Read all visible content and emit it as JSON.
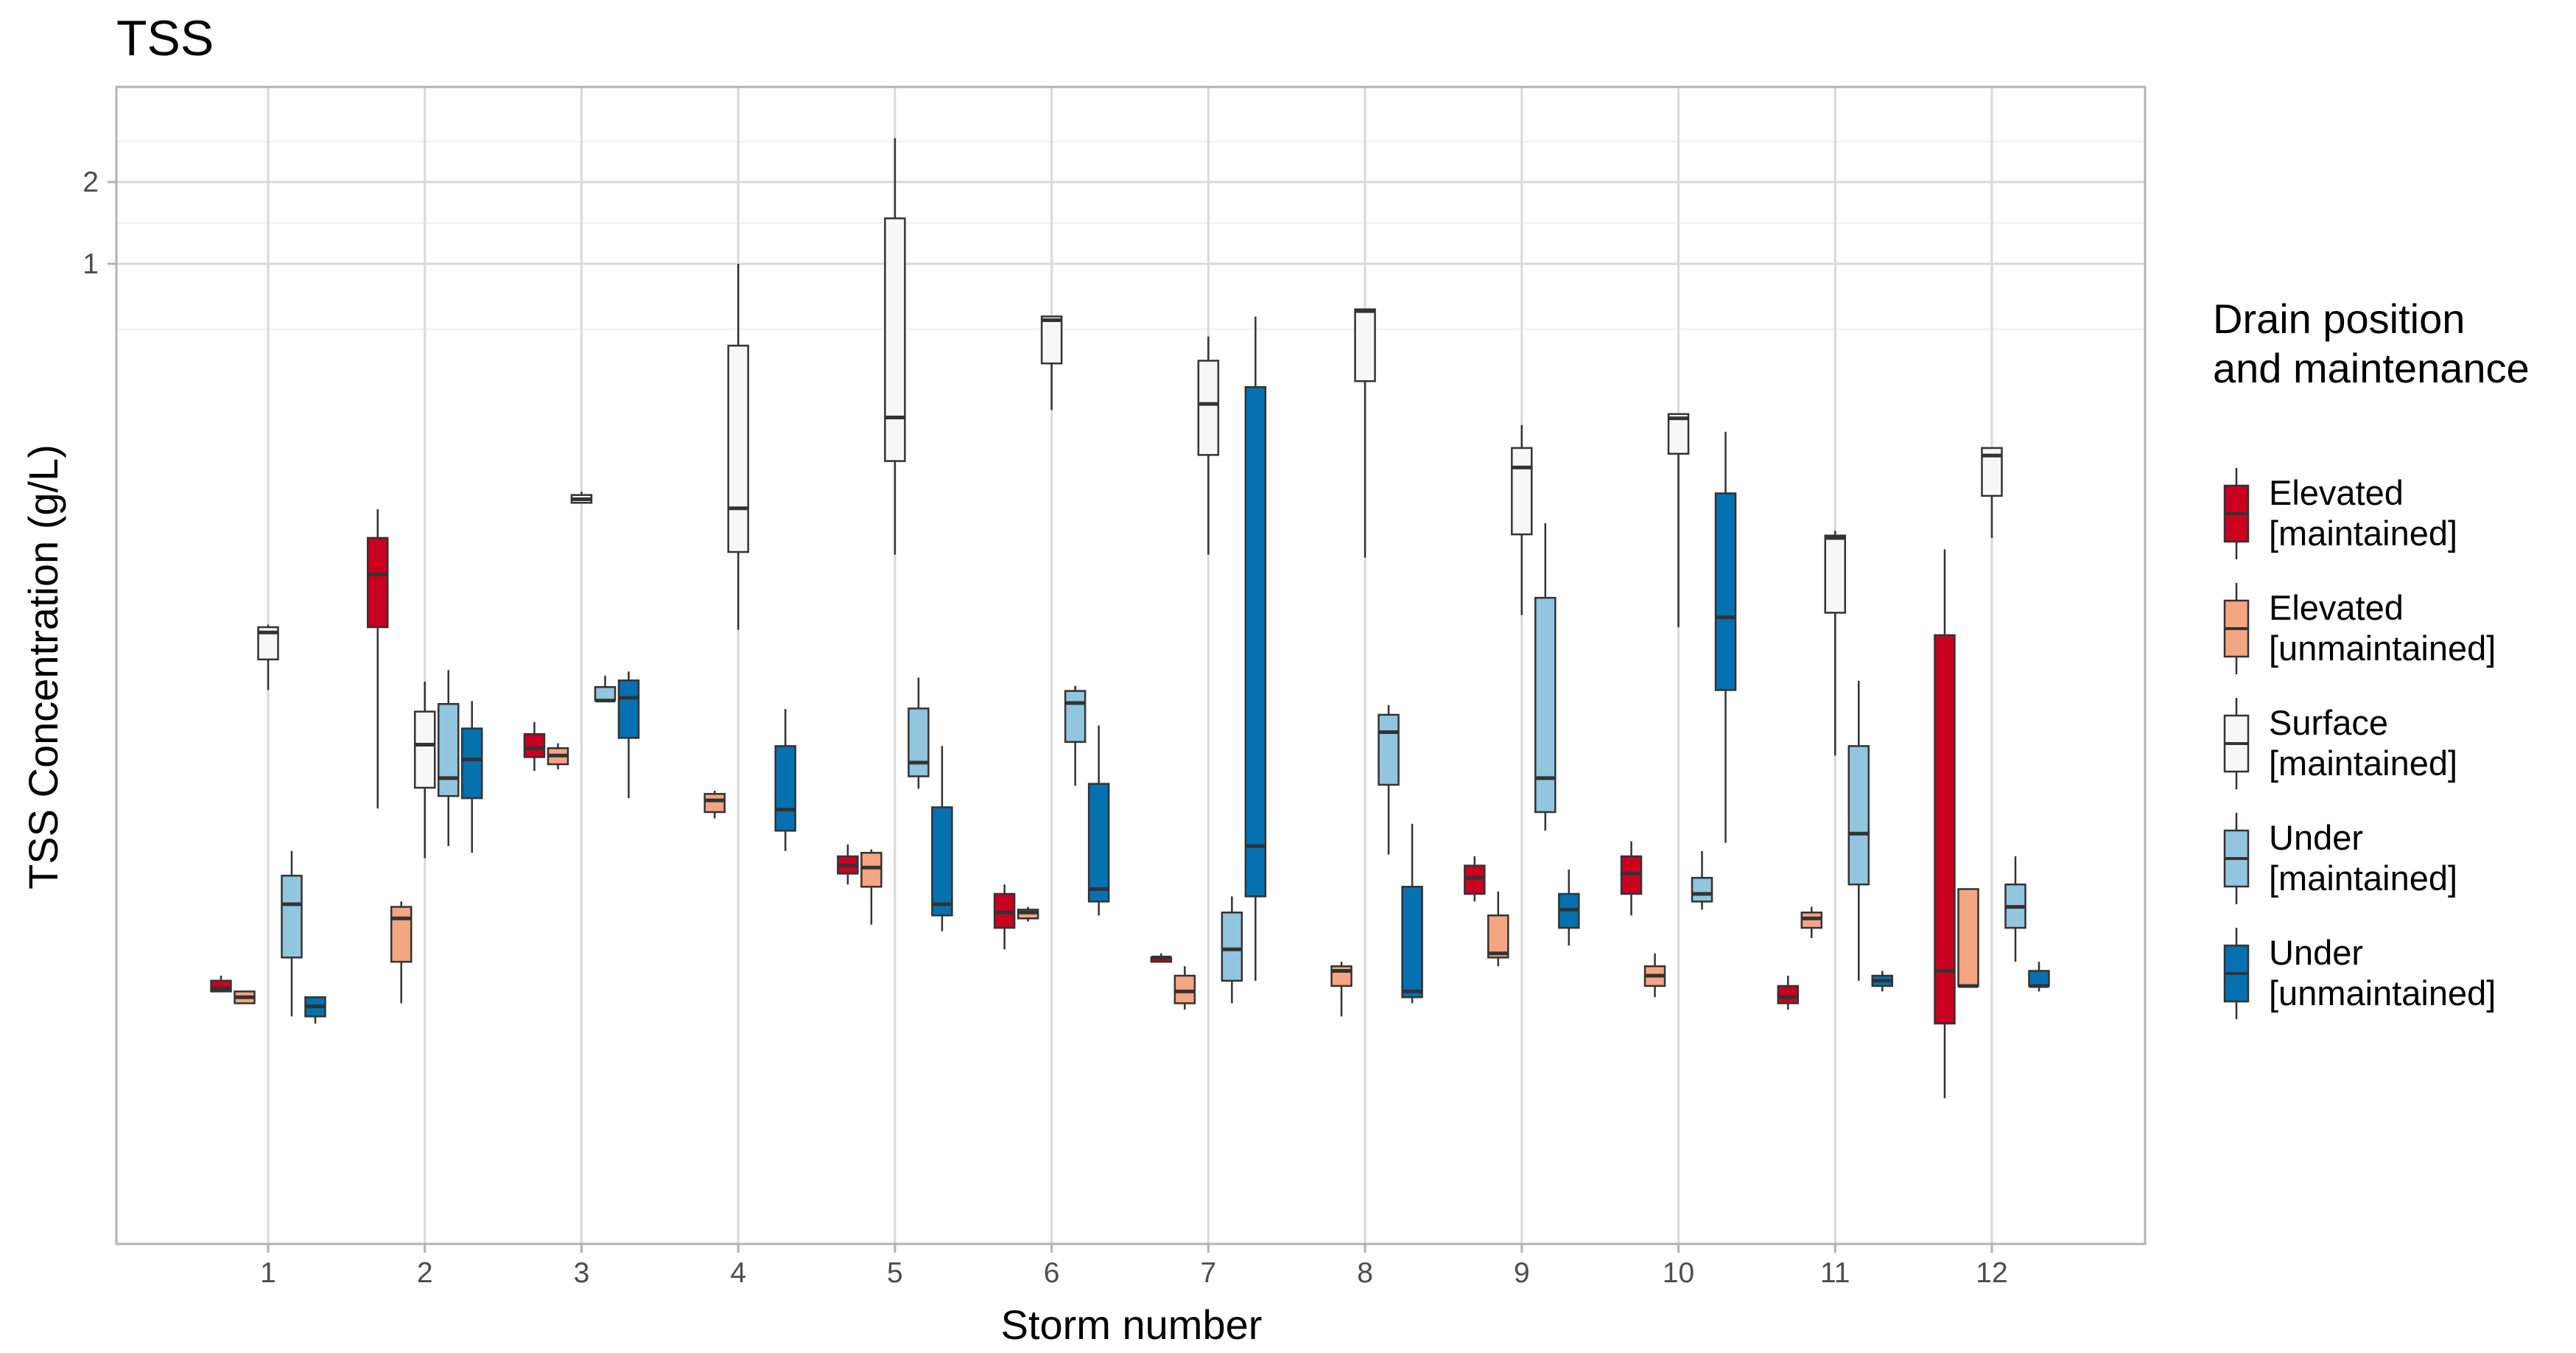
{
  "chart_data": {
    "type": "box",
    "title": "TSS",
    "xlabel": "Storm number",
    "ylabel": "TSS Concentration (g/L)",
    "y_scale": "log10",
    "ylim": [
      0.0003,
      5
    ],
    "categories": [
      "1",
      "2",
      "3",
      "4",
      "5",
      "6",
      "7",
      "8",
      "9",
      "10",
      "11",
      "12"
    ],
    "y_ticks": [
      {
        "value": 1,
        "label": "1"
      },
      {
        "value": 2,
        "label": "2"
      }
    ],
    "legend": {
      "title_lines": [
        "Drain position",
        "and maintenance"
      ],
      "placement": "right"
    },
    "series": [
      {
        "name": "Elevated [maintained]",
        "label_lines": [
          "Elevated",
          "[maintained]"
        ],
        "color": "#ca0020",
        "boxes": [
          {
            "storm": "1",
            "min": 0.0021,
            "q1": 0.0021,
            "median": 0.00215,
            "q3": 0.0023,
            "max": 0.0024
          },
          {
            "storm": "2",
            "min": 0.0099,
            "q1": 0.046,
            "median": 0.072,
            "q3": 0.098,
            "max": 0.125
          },
          {
            "storm": "3",
            "min": 0.0136,
            "q1": 0.0153,
            "median": 0.0165,
            "q3": 0.0186,
            "max": 0.0206
          },
          {
            "storm": "5",
            "min": 0.0052,
            "q1": 0.0057,
            "median": 0.0061,
            "q3": 0.0066,
            "max": 0.0073
          },
          {
            "storm": "6",
            "min": 0.003,
            "q1": 0.0036,
            "median": 0.0041,
            "q3": 0.0048,
            "max": 0.0052
          },
          {
            "storm": "7",
            "min": 0.0027,
            "q1": 0.0027,
            "median": 0.0028,
            "q3": 0.0028,
            "max": 0.0029
          },
          {
            "storm": "9",
            "min": 0.0045,
            "q1": 0.0048,
            "median": 0.0055,
            "q3": 0.0061,
            "max": 0.0066
          },
          {
            "storm": "10",
            "min": 0.004,
            "q1": 0.0048,
            "median": 0.0057,
            "q3": 0.0066,
            "max": 0.0075
          },
          {
            "storm": "11",
            "min": 0.0018,
            "q1": 0.0019,
            "median": 0.002,
            "q3": 0.0022,
            "max": 0.0024
          },
          {
            "storm": "12",
            "min": 0.00085,
            "q1": 0.0016,
            "median": 0.0025,
            "q3": 0.043,
            "max": 0.089
          }
        ]
      },
      {
        "name": "Elevated [unmaintained]",
        "label_lines": [
          "Elevated",
          "[unmaintained]"
        ],
        "color": "#f4a582",
        "boxes": [
          {
            "storm": "1",
            "min": 0.0019,
            "q1": 0.0019,
            "median": 0.002,
            "q3": 0.0021,
            "max": 0.0021
          },
          {
            "storm": "2",
            "min": 0.0019,
            "q1": 0.0027,
            "median": 0.0039,
            "q3": 0.0043,
            "max": 0.0045
          },
          {
            "storm": "3",
            "min": 0.0138,
            "q1": 0.0144,
            "median": 0.0155,
            "q3": 0.0165,
            "max": 0.0172
          },
          {
            "storm": "4",
            "min": 0.0091,
            "q1": 0.0096,
            "median": 0.0106,
            "q3": 0.0112,
            "max": 0.0115
          },
          {
            "storm": "5",
            "min": 0.0037,
            "q1": 0.0051,
            "median": 0.006,
            "q3": 0.0068,
            "max": 0.007
          },
          {
            "storm": "6",
            "min": 0.0038,
            "q1": 0.0039,
            "median": 0.0041,
            "q3": 0.0042,
            "max": 0.0043
          },
          {
            "storm": "7",
            "min": 0.0018,
            "q1": 0.0019,
            "median": 0.0021,
            "q3": 0.0024,
            "max": 0.0026
          },
          {
            "storm": "8",
            "min": 0.0017,
            "q1": 0.0022,
            "median": 0.0025,
            "q3": 0.0026,
            "max": 0.0027
          },
          {
            "storm": "9",
            "min": 0.0026,
            "q1": 0.0028,
            "median": 0.0029,
            "q3": 0.004,
            "max": 0.0049
          },
          {
            "storm": "10",
            "min": 0.002,
            "q1": 0.0022,
            "median": 0.0024,
            "q3": 0.0026,
            "max": 0.0029
          },
          {
            "storm": "11",
            "min": 0.0033,
            "q1": 0.0036,
            "median": 0.0039,
            "q3": 0.0041,
            "max": 0.0043
          },
          {
            "storm": "12",
            "min": 0.0022,
            "q1": 0.0022,
            "median": 0.0022,
            "q3": 0.005,
            "max": 0.005
          }
        ]
      },
      {
        "name": "Surface [maintained]",
        "label_lines": [
          "Surface",
          "[maintained]"
        ],
        "color": "#f7f7f7",
        "boxes": [
          {
            "storm": "1",
            "min": 0.027,
            "q1": 0.035,
            "median": 0.044,
            "q3": 0.046,
            "max": 0.047
          },
          {
            "storm": "2",
            "min": 0.0065,
            "q1": 0.0118,
            "median": 0.017,
            "q3": 0.0225,
            "max": 0.029
          },
          {
            "storm": "3",
            "min": 0.132,
            "q1": 0.132,
            "median": 0.136,
            "q3": 0.141,
            "max": 0.145
          },
          {
            "storm": "4",
            "min": 0.045,
            "q1": 0.087,
            "median": 0.126,
            "q3": 0.5,
            "max": 1.0
          },
          {
            "storm": "5",
            "min": 0.085,
            "q1": 0.188,
            "median": 0.272,
            "q3": 1.47,
            "max": 2.9
          },
          {
            "storm": "6",
            "min": 0.29,
            "q1": 0.43,
            "median": 0.62,
            "q3": 0.64,
            "max": 0.64
          },
          {
            "storm": "7",
            "min": 0.085,
            "q1": 0.198,
            "median": 0.305,
            "q3": 0.44,
            "max": 0.54
          },
          {
            "storm": "8",
            "min": 0.083,
            "q1": 0.37,
            "median": 0.67,
            "q3": 0.68,
            "max": 0.68
          },
          {
            "storm": "9",
            "min": 0.051,
            "q1": 0.101,
            "median": 0.178,
            "q3": 0.21,
            "max": 0.255
          },
          {
            "storm": "10",
            "min": 0.046,
            "q1": 0.2,
            "median": 0.27,
            "q3": 0.28,
            "max": 0.28
          },
          {
            "storm": "11",
            "min": 0.0155,
            "q1": 0.052,
            "median": 0.098,
            "q3": 0.1,
            "max": 0.104
          },
          {
            "storm": "12",
            "min": 0.098,
            "q1": 0.14,
            "median": 0.197,
            "q3": 0.21,
            "max": 0.21
          }
        ]
      },
      {
        "name": "Under [maintained]",
        "label_lines": [
          "Under",
          "[maintained]"
        ],
        "color": "#92c5de",
        "boxes": [
          {
            "storm": "1",
            "min": 0.0017,
            "q1": 0.0028,
            "median": 0.0044,
            "q3": 0.0056,
            "max": 0.0069
          },
          {
            "storm": "2",
            "min": 0.0072,
            "q1": 0.011,
            "median": 0.0128,
            "q3": 0.024,
            "max": 0.032
          },
          {
            "storm": "3",
            "min": 0.0247,
            "q1": 0.0247,
            "median": 0.0247,
            "q3": 0.0277,
            "max": 0.0305
          },
          {
            "storm": "5",
            "min": 0.0117,
            "q1": 0.013,
            "median": 0.0146,
            "q3": 0.0231,
            "max": 0.03
          },
          {
            "storm": "6",
            "min": 0.012,
            "q1": 0.0174,
            "median": 0.0242,
            "q3": 0.0268,
            "max": 0.028
          },
          {
            "storm": "7",
            "min": 0.0019,
            "q1": 0.0023,
            "median": 0.003,
            "q3": 0.0041,
            "max": 0.0047
          },
          {
            "storm": "8",
            "min": 0.0067,
            "q1": 0.0121,
            "median": 0.0189,
            "q3": 0.0219,
            "max": 0.0238
          },
          {
            "storm": "9",
            "min": 0.0082,
            "q1": 0.0096,
            "median": 0.0128,
            "q3": 0.059,
            "max": 0.111
          },
          {
            "storm": "10",
            "min": 0.0042,
            "q1": 0.0045,
            "median": 0.0048,
            "q3": 0.0055,
            "max": 0.0069
          },
          {
            "storm": "11",
            "min": 0.0023,
            "q1": 0.0052,
            "median": 0.008,
            "q3": 0.0168,
            "max": 0.0292
          },
          {
            "storm": "12",
            "min": 0.0027,
            "q1": 0.0036,
            "median": 0.0043,
            "q3": 0.0052,
            "max": 0.0066
          }
        ]
      },
      {
        "name": "Under [unmaintained]",
        "label_lines": [
          "Under",
          "[unmaintained]"
        ],
        "color": "#0571b0",
        "boxes": [
          {
            "storm": "1",
            "min": 0.0016,
            "q1": 0.0017,
            "median": 0.00185,
            "q3": 0.002,
            "max": 0.002
          },
          {
            "storm": "2",
            "min": 0.0068,
            "q1": 0.0108,
            "median": 0.015,
            "q3": 0.0195,
            "max": 0.0246
          },
          {
            "storm": "3",
            "min": 0.0108,
            "q1": 0.018,
            "median": 0.0253,
            "q3": 0.0293,
            "max": 0.0316
          },
          {
            "storm": "4",
            "min": 0.0069,
            "q1": 0.0082,
            "median": 0.0098,
            "q3": 0.0168,
            "max": 0.023
          },
          {
            "storm": "5",
            "min": 0.0035,
            "q1": 0.004,
            "median": 0.0044,
            "q3": 0.01,
            "max": 0.0168
          },
          {
            "storm": "6",
            "min": 0.004,
            "q1": 0.0045,
            "median": 0.005,
            "q3": 0.0122,
            "max": 0.02
          },
          {
            "storm": "7",
            "min": 0.0023,
            "q1": 0.0047,
            "median": 0.0072,
            "q3": 0.352,
            "max": 0.64
          },
          {
            "storm": "8",
            "min": 0.0019,
            "q1": 0.002,
            "median": 0.0021,
            "q3": 0.0051,
            "max": 0.0087
          },
          {
            "storm": "9",
            "min": 0.0031,
            "q1": 0.0036,
            "median": 0.0042,
            "q3": 0.0048,
            "max": 0.0059
          },
          {
            "storm": "10",
            "min": 0.0074,
            "q1": 0.027,
            "median": 0.05,
            "q3": 0.143,
            "max": 0.241
          },
          {
            "storm": "11",
            "min": 0.0021,
            "q1": 0.0022,
            "median": 0.0023,
            "q3": 0.0024,
            "max": 0.0025
          },
          {
            "storm": "12",
            "min": 0.0021,
            "q1": 0.0022,
            "median": 0.0022,
            "q3": 0.0025,
            "max": 0.0027
          }
        ]
      }
    ]
  }
}
